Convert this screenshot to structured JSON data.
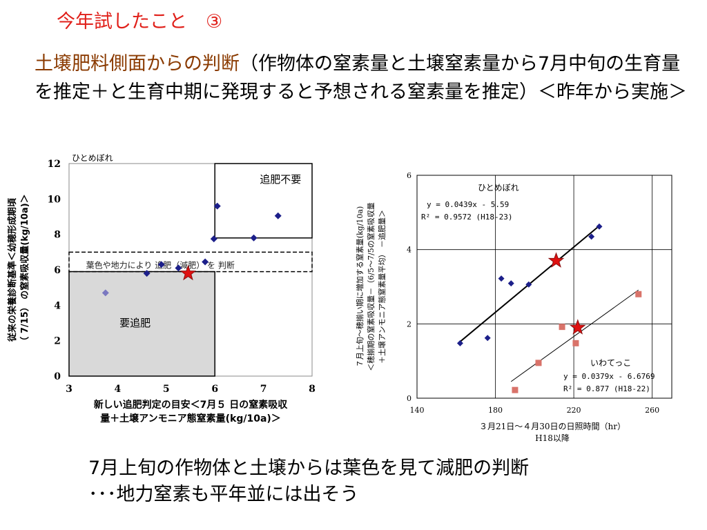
{
  "slide": {
    "title": "今年試したこと　③",
    "title_color": "#e0201a",
    "heading_lead": "土壌肥料側面からの判断",
    "heading_rest": "（作物体の窒素量と土壌窒素量から7月中旬の生育量を推定＋と生育中期に発現すると予想される窒素量を推定）＜昨年から実施＞",
    "bottom_line1": "7月上旬の作物体と土壌からは葉色を見て減肥の判断",
    "bottom_line2": "･･･地力窒素も平年並には出そう"
  },
  "colors": {
    "point": "#1c1f8a",
    "point_light": "#7a78c0",
    "square": "#d9736a",
    "star_fill": "#e01010",
    "star_stroke": "#8a1010",
    "zone_gray": "#d9d9d9",
    "axis": "#000000"
  },
  "chart_data": [
    {
      "type": "scatter",
      "subtitle": "ひとめぼれ",
      "xlabel_line1": "新しい追肥判定の目安＜7月５ 日の窒素吸収",
      "xlabel_line2": "量＋土壌アンモニア態窒素量(kg/10a)＞",
      "ylabel_line1": "従来の栄養診断基準＜幼穂形成期頃",
      "ylabel_line2": "（ 7/15） の窒素吸収量(kg/10a)＞",
      "xlim": [
        3,
        8
      ],
      "ylim": [
        0,
        12
      ],
      "x_ticks": [
        "3",
        "4",
        "5",
        "6",
        "7",
        "8"
      ],
      "y_ticks": [
        "0",
        "2",
        "4",
        "6",
        "8",
        "10",
        "12"
      ],
      "grid": false,
      "zones": {
        "no_topdress": {
          "label": "追肥不要",
          "x": [
            6,
            8
          ],
          "y": [
            7.8,
            12
          ]
        },
        "need_topdress": {
          "label": "要追肥",
          "x": [
            3,
            6
          ],
          "y": [
            0,
            5.9
          ]
        },
        "leaf_color_band": {
          "label": "葉色や地力により 追肥（減肥） を 判断",
          "y": [
            5.9,
            7.0
          ]
        }
      },
      "points": [
        {
          "x": 3.75,
          "y": 4.7,
          "light": true
        },
        {
          "x": 4.6,
          "y": 5.8
        },
        {
          "x": 4.9,
          "y": 6.3
        },
        {
          "x": 5.25,
          "y": 6.1
        },
        {
          "x": 5.8,
          "y": 6.45
        },
        {
          "x": 5.98,
          "y": 7.75
        },
        {
          "x": 6.05,
          "y": 9.6
        },
        {
          "x": 6.8,
          "y": 7.8
        },
        {
          "x": 7.3,
          "y": 9.05
        }
      ],
      "star": {
        "x": 5.45,
        "y": 5.8
      }
    },
    {
      "type": "scatter",
      "xlabel_line1": "３月21日～４月30日の日照時間（hr）",
      "xlabel_line2": "H18以降",
      "ylabel_line1": "７月上旬～穂揃い期に増加する窒素量(kg/10a)",
      "ylabel_line2": "＜穂揃期の窒素吸収量－（6/5～7/5の窒素吸収量",
      "ylabel_line3": "＋土壌アンモニア態窒素量平均） －追肥量＞",
      "xlim": [
        140,
        270
      ],
      "ylim": [
        0,
        6
      ],
      "x_ticks": [
        140,
        180,
        220,
        260
      ],
      "y_ticks": [
        0,
        2,
        4,
        6
      ],
      "grid": true,
      "series": [
        {
          "name": "ひとめぼれ",
          "equation": "y = 0.0439x - 5.59",
          "r2": "R² = 0.9572 (H18-23)",
          "marker": "diamond",
          "points": [
            [
              162,
              1.48
            ],
            [
              176,
              1.62
            ],
            [
              183,
              3.22
            ],
            [
              188,
              3.09
            ],
            [
              197,
              3.06
            ],
            [
              229,
              4.35
            ],
            [
              233,
              4.62
            ]
          ],
          "fit": {
            "slope": 0.0439,
            "intercept": -5.59,
            "x_range": [
              161,
              232
            ]
          }
        },
        {
          "name": "いわてっこ",
          "equation": "y = 0.0379x - 6.6769",
          "r2": "R² = 0.877 (H18-22)",
          "marker": "square",
          "points": [
            [
              190,
              0.22
            ],
            [
              202,
              0.95
            ],
            [
              214,
              1.92
            ],
            [
              221,
              1.48
            ],
            [
              253,
              2.8
            ]
          ],
          "fit": {
            "slope": 0.0379,
            "intercept": -6.6769,
            "x_range": [
              188,
              253
            ]
          }
        }
      ],
      "stars": [
        {
          "x": 211,
          "y": 3.7
        },
        {
          "x": 222,
          "y": 1.9
        }
      ]
    }
  ]
}
